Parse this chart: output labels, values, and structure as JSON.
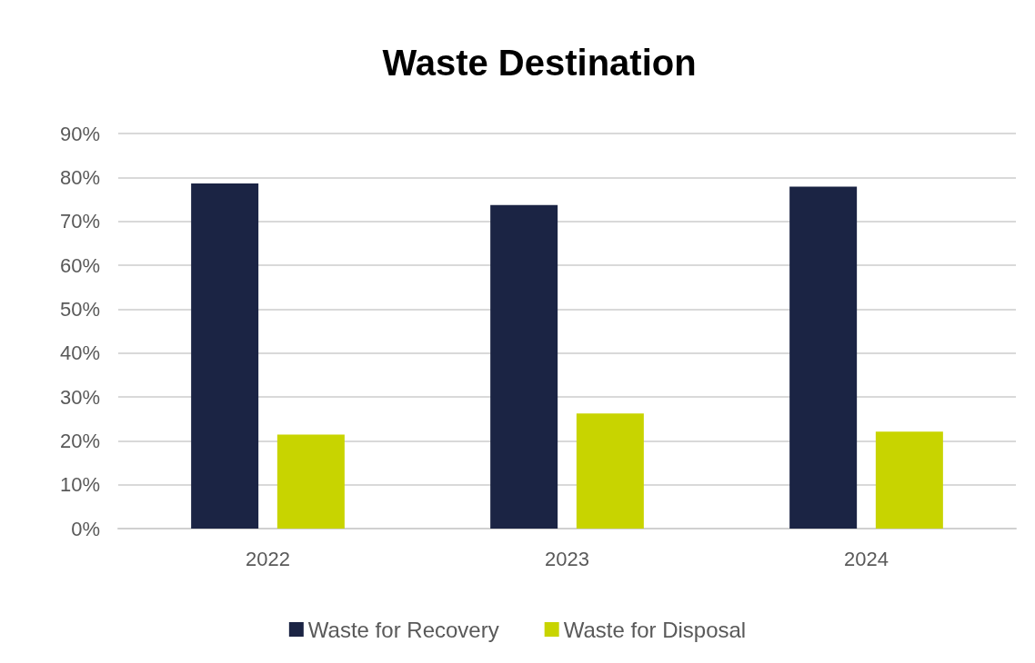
{
  "chart_data": {
    "type": "bar",
    "title": "Waste Destination",
    "categories": [
      "2022",
      "2023",
      "2024"
    ],
    "series": [
      {
        "name": "Waste for Recovery",
        "color": "#1b2444",
        "values": [
          78.6,
          73.7,
          77.9
        ]
      },
      {
        "name": "Waste for Disposal",
        "color": "#c8d400",
        "values": [
          21.4,
          26.2,
          22.1
        ]
      }
    ],
    "ylim": [
      0,
      90
    ],
    "yticks": [
      {
        "value": 0,
        "label": "0%"
      },
      {
        "value": 10,
        "label": "10%"
      },
      {
        "value": 20,
        "label": "20%"
      },
      {
        "value": 30,
        "label": "30%"
      },
      {
        "value": 40,
        "label": "40%"
      },
      {
        "value": 50,
        "label": "50%"
      },
      {
        "value": 60,
        "label": "60%"
      },
      {
        "value": 70,
        "label": "70%"
      },
      {
        "value": 80,
        "label": "80%"
      },
      {
        "value": 90,
        "label": "90%"
      }
    ],
    "grid": "y",
    "legend": "bottom"
  }
}
